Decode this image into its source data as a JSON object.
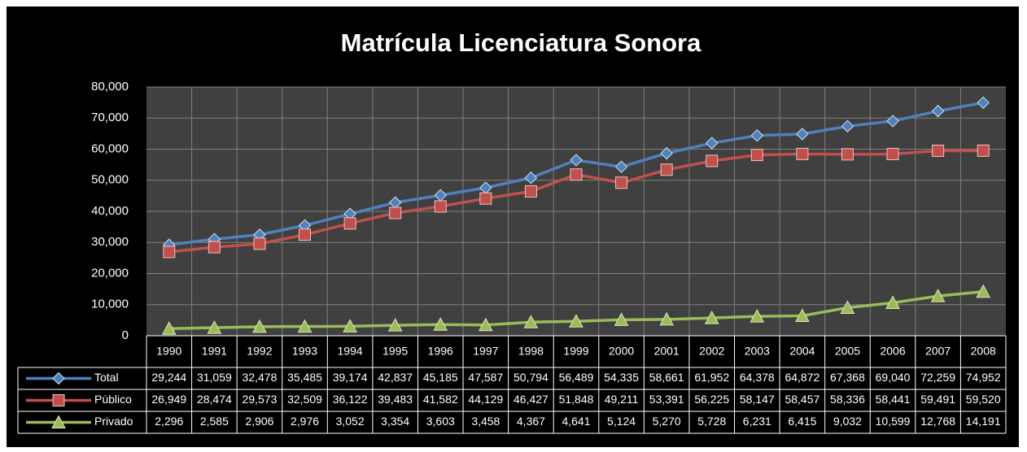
{
  "chart_data": {
    "type": "line",
    "title": "Matrícula Licenciatura Sonora",
    "categories": [
      "1990",
      "1991",
      "1992",
      "1993",
      "1994",
      "1995",
      "1996",
      "1997",
      "1998",
      "1999",
      "2000",
      "2001",
      "2002",
      "2003",
      "2004",
      "2005",
      "2006",
      "2007",
      "2008"
    ],
    "ylim": [
      0,
      80000
    ],
    "yticks": [
      0,
      {
        "value": 10000,
        "label": "10,000"
      },
      {
        "value": 20000,
        "label": "20,000"
      },
      {
        "value": 30000,
        "label": "30,000"
      },
      {
        "value": 40000,
        "label": "40,000"
      },
      {
        "value": 50000,
        "label": "50,000"
      },
      {
        "value": 60000,
        "label": "60,000"
      },
      {
        "value": 70000,
        "label": "70,000"
      },
      {
        "value": 80000,
        "label": "80,000"
      }
    ],
    "grid": true,
    "series": [
      {
        "name": "Total",
        "color": "#4f81bd",
        "marker": "diamond",
        "values": [
          29244,
          31059,
          32478,
          35485,
          39174,
          42837,
          45185,
          47587,
          50794,
          56489,
          54335,
          58661,
          61952,
          64378,
          64872,
          67368,
          69040,
          72259,
          74952
        ],
        "value_labels": [
          "29,244",
          "31,059",
          "32,478",
          "35,485",
          "39,174",
          "42,837",
          "45,185",
          "47,587",
          "50,794",
          "56,489",
          "54,335",
          "58,661",
          "61,952",
          "64,378",
          "64,872",
          "67,368",
          "69,040",
          "72,259",
          "74,952"
        ]
      },
      {
        "name": "Público",
        "color": "#c0504d",
        "marker": "square",
        "values": [
          26949,
          28474,
          29573,
          32509,
          36122,
          39483,
          41582,
          44129,
          46427,
          51848,
          49211,
          53391,
          56225,
          58147,
          58457,
          58336,
          58441,
          59491,
          59520
        ],
        "value_labels": [
          "26,949",
          "28,474",
          "29,573",
          "32,509",
          "36,122",
          "39,483",
          "41,582",
          "44,129",
          "46,427",
          "51,848",
          "49,211",
          "53,391",
          "56,225",
          "58,147",
          "58,457",
          "58,336",
          "58,441",
          "59,491",
          "59,520"
        ]
      },
      {
        "name": "Privado",
        "color": "#9bbb59",
        "marker": "triangle",
        "values": [
          2296,
          2585,
          2906,
          2976,
          3052,
          3354,
          3603,
          3458,
          4367,
          4641,
          5124,
          5270,
          5728,
          6231,
          6415,
          9032,
          10599,
          12768,
          14191
        ],
        "value_labels": [
          "2,296",
          "2,585",
          "2,906",
          "2,976",
          "3,052",
          "3,354",
          "3,603",
          "3,458",
          "4,367",
          "4,641",
          "5,124",
          "5,270",
          "5,728",
          "6,231",
          "6,415",
          "9,032",
          "10,599",
          "12,768",
          "14,191"
        ]
      }
    ]
  }
}
